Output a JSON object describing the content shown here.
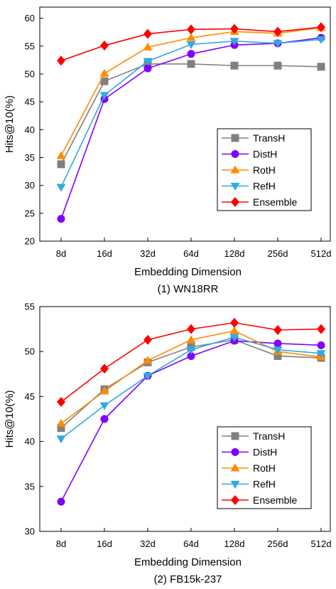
{
  "chart_data": [
    {
      "type": "line",
      "caption": "(1) WN18RR",
      "xlabel": "Embedding Dimension",
      "ylabel": "Hits@10(%)",
      "categories": [
        "8d",
        "16d",
        "32d",
        "64d",
        "128d",
        "256d",
        "512d"
      ],
      "ylim": [
        20,
        62
      ],
      "yticks": [
        20,
        25,
        30,
        35,
        40,
        45,
        50,
        55,
        60
      ],
      "legend_position": "right-center",
      "grid": false,
      "series": [
        {
          "name": "TransH",
          "color": "#808080",
          "marker": "square",
          "values": [
            33.8,
            48.7,
            51.8,
            51.8,
            51.5,
            51.5,
            51.3
          ]
        },
        {
          "name": "DistH",
          "color": "#8000ff",
          "marker": "circle",
          "values": [
            24.0,
            45.5,
            51.0,
            53.6,
            55.2,
            55.5,
            56.5
          ]
        },
        {
          "name": "RotH",
          "color": "#ff8c00",
          "marker": "triangle-up",
          "values": [
            35.3,
            50.1,
            54.8,
            56.5,
            57.6,
            57.3,
            58.3
          ]
        },
        {
          "name": "RefH",
          "color": "#33aadd",
          "marker": "triangle-down",
          "values": [
            29.7,
            46.2,
            52.3,
            55.3,
            55.9,
            55.5,
            56.2
          ]
        },
        {
          "name": "Ensemble",
          "color": "#ff0000",
          "marker": "diamond",
          "values": [
            52.4,
            55.1,
            57.2,
            58.0,
            58.1,
            57.6,
            58.4
          ]
        }
      ]
    },
    {
      "type": "line",
      "caption": "(2) FB15k-237",
      "xlabel": "Embedding Dimension",
      "ylabel": "Hits@10(%)",
      "categories": [
        "8d",
        "16d",
        "32d",
        "64d",
        "128d",
        "256d",
        "512d"
      ],
      "ylim": [
        30,
        55
      ],
      "yticks": [
        30,
        35,
        40,
        45,
        50,
        55
      ],
      "legend_position": "bottom-right",
      "grid": false,
      "series": [
        {
          "name": "TransH",
          "color": "#808080",
          "marker": "square",
          "values": [
            41.5,
            45.8,
            48.8,
            50.5,
            51.3,
            49.5,
            49.3
          ]
        },
        {
          "name": "DistH",
          "color": "#8000ff",
          "marker": "circle",
          "values": [
            33.3,
            42.5,
            47.3,
            49.5,
            51.2,
            50.9,
            50.7
          ]
        },
        {
          "name": "RotH",
          "color": "#ff8c00",
          "marker": "triangle-up",
          "values": [
            42.0,
            45.6,
            49.0,
            51.3,
            52.3,
            50.0,
            49.4
          ]
        },
        {
          "name": "RefH",
          "color": "#33aadd",
          "marker": "triangle-down",
          "values": [
            40.3,
            44.0,
            47.3,
            50.2,
            51.6,
            50.2,
            49.8
          ]
        },
        {
          "name": "Ensemble",
          "color": "#ff0000",
          "marker": "diamond",
          "values": [
            44.4,
            48.1,
            51.3,
            52.5,
            53.2,
            52.4,
            52.5
          ]
        }
      ]
    }
  ]
}
